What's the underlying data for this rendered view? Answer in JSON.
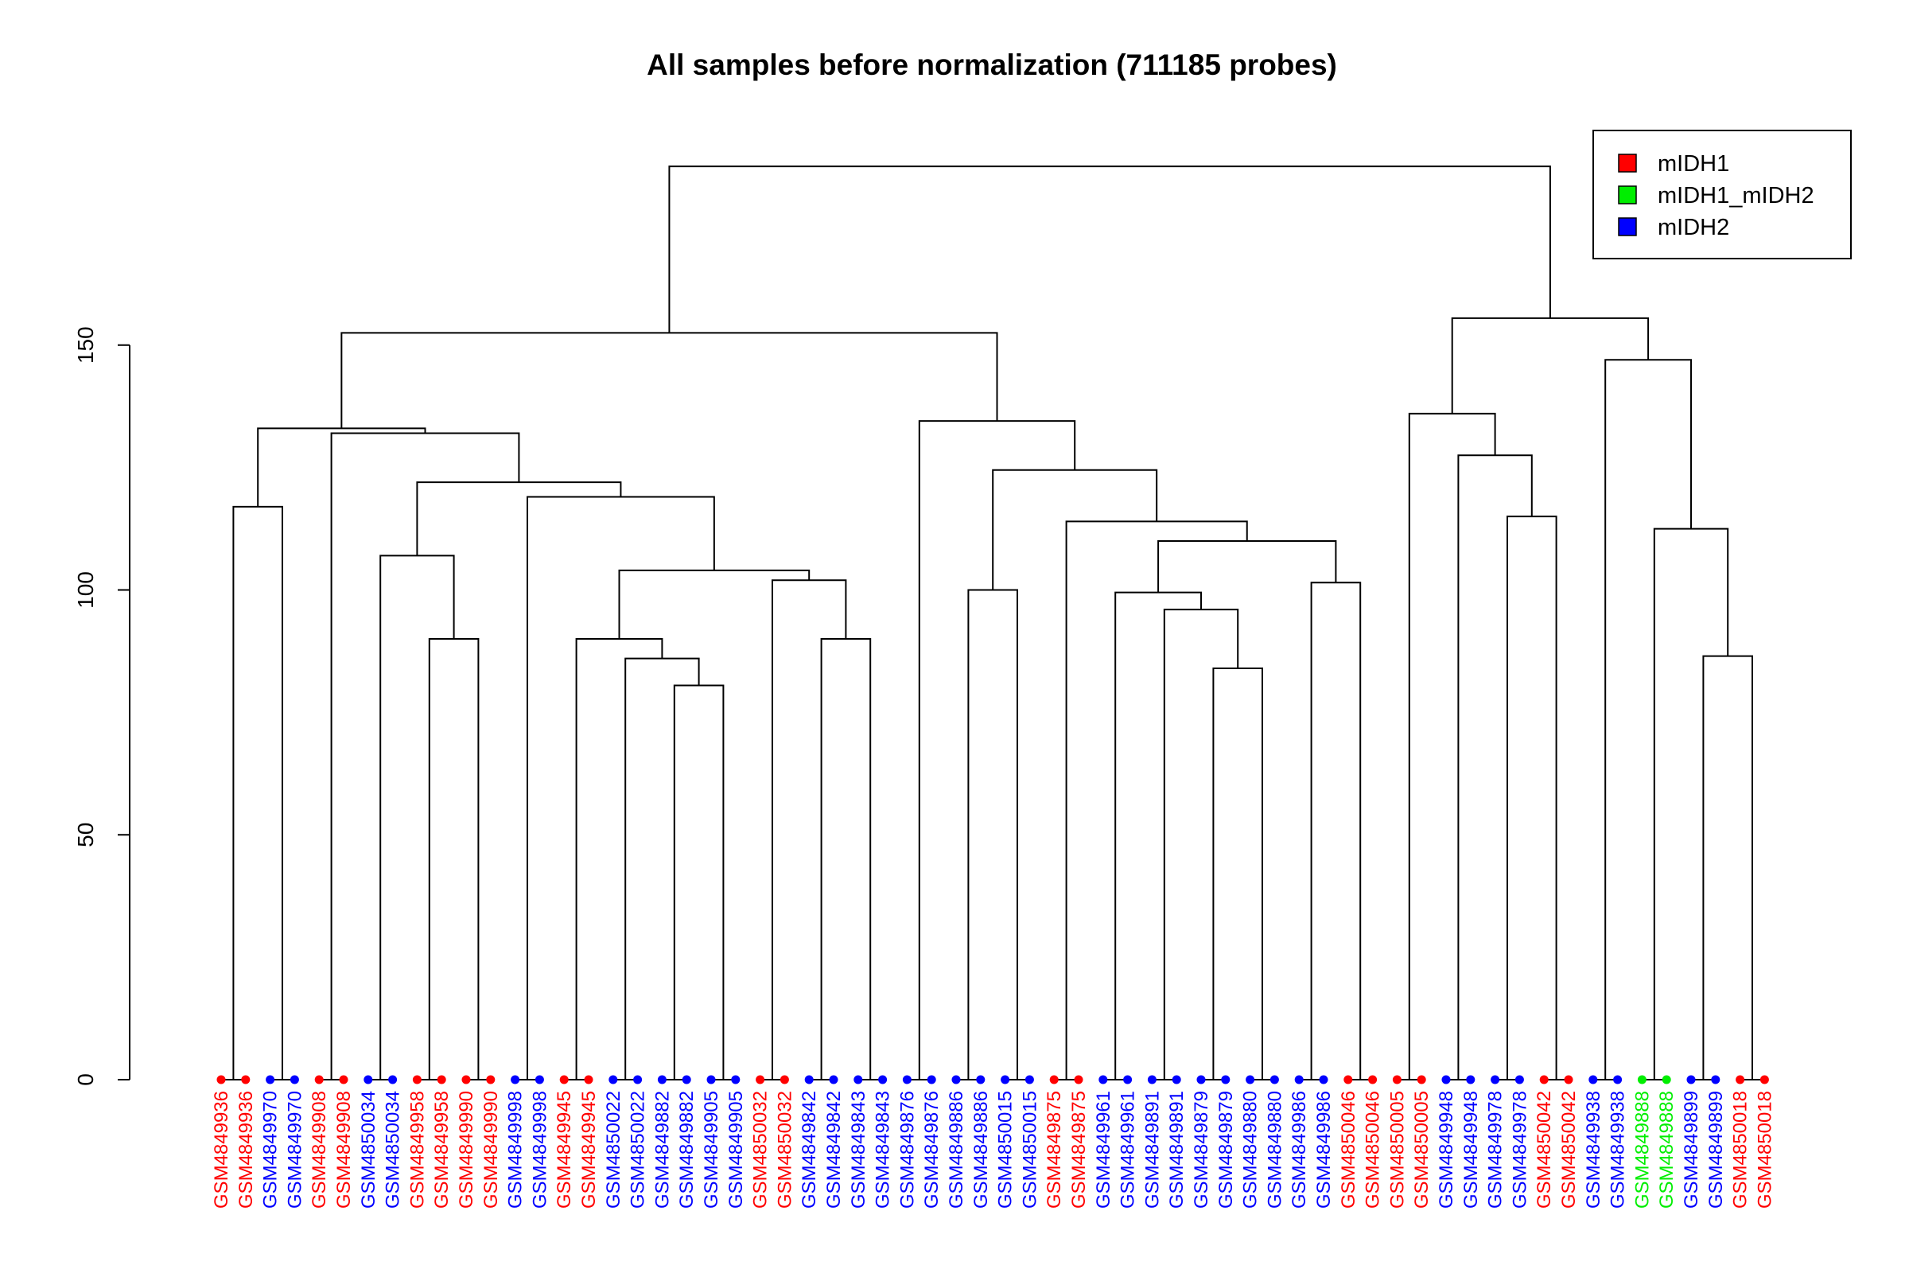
{
  "chart_data": {
    "type": "dendrogram",
    "title": "All samples before normalization (711185 probes)",
    "ylabel": "",
    "ylim": [
      0,
      190
    ],
    "y_ticks": [
      0,
      50,
      100,
      150
    ],
    "grid": false,
    "legend": {
      "placement": "top-right",
      "entries": [
        {
          "label": "mIDH1",
          "color": "#ff0000"
        },
        {
          "label": "mIDH1_mIDH2",
          "color": "#00ee00"
        },
        {
          "label": "mIDH2",
          "color": "#0000ff"
        }
      ]
    },
    "leaves": [
      {
        "label": "GSM4849936",
        "group": "mIDH1"
      },
      {
        "label": "GSM4849936",
        "group": "mIDH1"
      },
      {
        "label": "GSM4849970",
        "group": "mIDH2"
      },
      {
        "label": "GSM4849970",
        "group": "mIDH2"
      },
      {
        "label": "GSM4849908",
        "group": "mIDH1"
      },
      {
        "label": "GSM4849908",
        "group": "mIDH1"
      },
      {
        "label": "GSM4850034",
        "group": "mIDH2"
      },
      {
        "label": "GSM4850034",
        "group": "mIDH2"
      },
      {
        "label": "GSM4849958",
        "group": "mIDH1"
      },
      {
        "label": "GSM4849958",
        "group": "mIDH1"
      },
      {
        "label": "GSM4849990",
        "group": "mIDH1"
      },
      {
        "label": "GSM4849990",
        "group": "mIDH1"
      },
      {
        "label": "GSM4849998",
        "group": "mIDH2"
      },
      {
        "label": "GSM4849998",
        "group": "mIDH2"
      },
      {
        "label": "GSM4849945",
        "group": "mIDH1"
      },
      {
        "label": "GSM4849945",
        "group": "mIDH1"
      },
      {
        "label": "GSM4850022",
        "group": "mIDH2"
      },
      {
        "label": "GSM4850022",
        "group": "mIDH2"
      },
      {
        "label": "GSM4849882",
        "group": "mIDH2"
      },
      {
        "label": "GSM4849882",
        "group": "mIDH2"
      },
      {
        "label": "GSM4849905",
        "group": "mIDH2"
      },
      {
        "label": "GSM4849905",
        "group": "mIDH2"
      },
      {
        "label": "GSM4850032",
        "group": "mIDH1"
      },
      {
        "label": "GSM4850032",
        "group": "mIDH1"
      },
      {
        "label": "GSM4849842",
        "group": "mIDH2"
      },
      {
        "label": "GSM4849842",
        "group": "mIDH2"
      },
      {
        "label": "GSM4849843",
        "group": "mIDH2"
      },
      {
        "label": "GSM4849843",
        "group": "mIDH2"
      },
      {
        "label": "GSM4849876",
        "group": "mIDH2"
      },
      {
        "label": "GSM4849876",
        "group": "mIDH2"
      },
      {
        "label": "GSM4849886",
        "group": "mIDH2"
      },
      {
        "label": "GSM4849886",
        "group": "mIDH2"
      },
      {
        "label": "GSM4850015",
        "group": "mIDH2"
      },
      {
        "label": "GSM4850015",
        "group": "mIDH2"
      },
      {
        "label": "GSM4849875",
        "group": "mIDH1"
      },
      {
        "label": "GSM4849875",
        "group": "mIDH1"
      },
      {
        "label": "GSM4849961",
        "group": "mIDH2"
      },
      {
        "label": "GSM4849961",
        "group": "mIDH2"
      },
      {
        "label": "GSM4849891",
        "group": "mIDH2"
      },
      {
        "label": "GSM4849891",
        "group": "mIDH2"
      },
      {
        "label": "GSM4849879",
        "group": "mIDH2"
      },
      {
        "label": "GSM4849879",
        "group": "mIDH2"
      },
      {
        "label": "GSM4849880",
        "group": "mIDH2"
      },
      {
        "label": "GSM4849880",
        "group": "mIDH2"
      },
      {
        "label": "GSM4849986",
        "group": "mIDH2"
      },
      {
        "label": "GSM4849986",
        "group": "mIDH2"
      },
      {
        "label": "GSM4850046",
        "group": "mIDH1"
      },
      {
        "label": "GSM4850046",
        "group": "mIDH1"
      },
      {
        "label": "GSM4850005",
        "group": "mIDH1"
      },
      {
        "label": "GSM4850005",
        "group": "mIDH1"
      },
      {
        "label": "GSM4849948",
        "group": "mIDH2"
      },
      {
        "label": "GSM4849948",
        "group": "mIDH2"
      },
      {
        "label": "GSM4849978",
        "group": "mIDH2"
      },
      {
        "label": "GSM4849978",
        "group": "mIDH2"
      },
      {
        "label": "GSM4850042",
        "group": "mIDH1"
      },
      {
        "label": "GSM4850042",
        "group": "mIDH1"
      },
      {
        "label": "GSM4849938",
        "group": "mIDH2"
      },
      {
        "label": "GSM4849938",
        "group": "mIDH2"
      },
      {
        "label": "GSM4849888",
        "group": "mIDH1_mIDH2"
      },
      {
        "label": "GSM4849888",
        "group": "mIDH1_mIDH2"
      },
      {
        "label": "GSM4849899",
        "group": "mIDH2"
      },
      {
        "label": "GSM4849899",
        "group": "mIDH2"
      },
      {
        "label": "GSM4850018",
        "group": "mIDH1"
      },
      {
        "label": "GSM4850018",
        "group": "mIDH1"
      }
    ],
    "merges": [
      {
        "left": [
          "leaf",
          0
        ],
        "right": [
          "leaf",
          1
        ],
        "height": 0
      },
      {
        "left": [
          "leaf",
          2
        ],
        "right": [
          "leaf",
          3
        ],
        "height": 0
      },
      {
        "left": [
          "node",
          0
        ],
        "right": [
          "node",
          1
        ],
        "height": 117
      },
      {
        "left": [
          "leaf",
          4
        ],
        "right": [
          "leaf",
          5
        ],
        "height": 0
      },
      {
        "left": [
          "leaf",
          6
        ],
        "right": [
          "leaf",
          7
        ],
        "height": 0
      },
      {
        "left": [
          "leaf",
          8
        ],
        "right": [
          "leaf",
          9
        ],
        "height": 0
      },
      {
        "left": [
          "leaf",
          10
        ],
        "right": [
          "leaf",
          11
        ],
        "height": 0
      },
      {
        "left": [
          "node",
          5
        ],
        "right": [
          "node",
          6
        ],
        "height": 90
      },
      {
        "left": [
          "node",
          4
        ],
        "right": [
          "node",
          7
        ],
        "height": 107
      },
      {
        "left": [
          "leaf",
          12
        ],
        "right": [
          "leaf",
          13
        ],
        "height": 0
      },
      {
        "left": [
          "leaf",
          14
        ],
        "right": [
          "leaf",
          15
        ],
        "height": 0
      },
      {
        "left": [
          "leaf",
          16
        ],
        "right": [
          "leaf",
          17
        ],
        "height": 0
      },
      {
        "left": [
          "leaf",
          18
        ],
        "right": [
          "leaf",
          19
        ],
        "height": 0
      },
      {
        "left": [
          "leaf",
          20
        ],
        "right": [
          "leaf",
          21
        ],
        "height": 0
      },
      {
        "left": [
          "node",
          12
        ],
        "right": [
          "node",
          13
        ],
        "height": 80.5
      },
      {
        "left": [
          "node",
          11
        ],
        "right": [
          "node",
          14
        ],
        "height": 86
      },
      {
        "left": [
          "node",
          10
        ],
        "right": [
          "node",
          15
        ],
        "height": 90
      },
      {
        "left": [
          "leaf",
          22
        ],
        "right": [
          "leaf",
          23
        ],
        "height": 0
      },
      {
        "left": [
          "leaf",
          24
        ],
        "right": [
          "leaf",
          25
        ],
        "height": 0
      },
      {
        "left": [
          "leaf",
          26
        ],
        "right": [
          "leaf",
          27
        ],
        "height": 0
      },
      {
        "left": [
          "node",
          18
        ],
        "right": [
          "node",
          19
        ],
        "height": 90
      },
      {
        "left": [
          "node",
          17
        ],
        "right": [
          "node",
          20
        ],
        "height": 102
      },
      {
        "left": [
          "node",
          16
        ],
        "right": [
          "node",
          21
        ],
        "height": 104
      },
      {
        "left": [
          "node",
          9
        ],
        "right": [
          "node",
          22
        ],
        "height": 119
      },
      {
        "left": [
          "node",
          8
        ],
        "right": [
          "node",
          23
        ],
        "height": 122
      },
      {
        "left": [
          "node",
          3
        ],
        "right": [
          "node",
          24
        ],
        "height": 132
      },
      {
        "left": [
          "node",
          2
        ],
        "right": [
          "node",
          25
        ],
        "height": 133
      },
      {
        "left": [
          "leaf",
          28
        ],
        "right": [
          "leaf",
          29
        ],
        "height": 0
      },
      {
        "left": [
          "leaf",
          30
        ],
        "right": [
          "leaf",
          31
        ],
        "height": 0
      },
      {
        "left": [
          "leaf",
          32
        ],
        "right": [
          "leaf",
          33
        ],
        "height": 0
      },
      {
        "left": [
          "node",
          28
        ],
        "right": [
          "node",
          29
        ],
        "height": 100
      },
      {
        "left": [
          "leaf",
          34
        ],
        "right": [
          "leaf",
          35
        ],
        "height": 0
      },
      {
        "left": [
          "leaf",
          36
        ],
        "right": [
          "leaf",
          37
        ],
        "height": 0
      },
      {
        "left": [
          "leaf",
          38
        ],
        "right": [
          "leaf",
          39
        ],
        "height": 0
      },
      {
        "left": [
          "leaf",
          40
        ],
        "right": [
          "leaf",
          41
        ],
        "height": 0
      },
      {
        "left": [
          "leaf",
          42
        ],
        "right": [
          "leaf",
          43
        ],
        "height": 0
      },
      {
        "left": [
          "node",
          34
        ],
        "right": [
          "node",
          35
        ],
        "height": 84
      },
      {
        "left": [
          "node",
          33
        ],
        "right": [
          "node",
          36
        ],
        "height": 96
      },
      {
        "left": [
          "node",
          32
        ],
        "right": [
          "node",
          37
        ],
        "height": 99.5
      },
      {
        "left": [
          "leaf",
          44
        ],
        "right": [
          "leaf",
          45
        ],
        "height": 0
      },
      {
        "left": [
          "leaf",
          46
        ],
        "right": [
          "leaf",
          47
        ],
        "height": 0
      },
      {
        "left": [
          "node",
          39
        ],
        "right": [
          "node",
          40
        ],
        "height": 101.5
      },
      {
        "left": [
          "node",
          38
        ],
        "right": [
          "node",
          41
        ],
        "height": 110
      },
      {
        "left": [
          "node",
          31
        ],
        "right": [
          "node",
          42
        ],
        "height": 114
      },
      {
        "left": [
          "node",
          30
        ],
        "right": [
          "node",
          43
        ],
        "height": 124.5
      },
      {
        "left": [
          "node",
          27
        ],
        "right": [
          "node",
          44
        ],
        "height": 134.5
      },
      {
        "left": [
          "node",
          26
        ],
        "right": [
          "node",
          45
        ],
        "height": 152.5
      },
      {
        "left": [
          "leaf",
          48
        ],
        "right": [
          "leaf",
          49
        ],
        "height": 0
      },
      {
        "left": [
          "leaf",
          50
        ],
        "right": [
          "leaf",
          51
        ],
        "height": 0
      },
      {
        "left": [
          "leaf",
          52
        ],
        "right": [
          "leaf",
          53
        ],
        "height": 0
      },
      {
        "left": [
          "leaf",
          54
        ],
        "right": [
          "leaf",
          55
        ],
        "height": 0
      },
      {
        "left": [
          "node",
          49
        ],
        "right": [
          "node",
          50
        ],
        "height": 115
      },
      {
        "left": [
          "node",
          48
        ],
        "right": [
          "node",
          51
        ],
        "height": 127.5
      },
      {
        "left": [
          "node",
          47
        ],
        "right": [
          "node",
          52
        ],
        "height": 136
      },
      {
        "left": [
          "leaf",
          56
        ],
        "right": [
          "leaf",
          57
        ],
        "height": 0
      },
      {
        "left": [
          "leaf",
          58
        ],
        "right": [
          "leaf",
          59
        ],
        "height": 0
      },
      {
        "left": [
          "leaf",
          60
        ],
        "right": [
          "leaf",
          61
        ],
        "height": 0
      },
      {
        "left": [
          "leaf",
          62
        ],
        "right": [
          "leaf",
          63
        ],
        "height": 0
      },
      {
        "left": [
          "node",
          56
        ],
        "right": [
          "node",
          57
        ],
        "height": 86.5
      },
      {
        "left": [
          "node",
          55
        ],
        "right": [
          "node",
          58
        ],
        "height": 112.5
      },
      {
        "left": [
          "node",
          54
        ],
        "right": [
          "node",
          59
        ],
        "height": 147
      },
      {
        "left": [
          "node",
          53
        ],
        "right": [
          "node",
          60
        ],
        "height": 155.5
      },
      {
        "left": [
          "node",
          46
        ],
        "right": [
          "node",
          61
        ],
        "height": 186.5
      }
    ]
  }
}
